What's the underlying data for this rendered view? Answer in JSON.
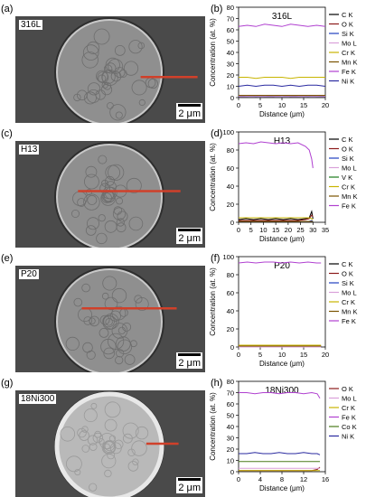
{
  "panels": [
    {
      "sem_letter": "(a)",
      "chart_letter": "(b)",
      "sample": "316L",
      "scale_label": "2 μm",
      "line_frac": [
        0.57,
        0.66,
        0.96
      ]
    },
    {
      "sem_letter": "(c)",
      "chart_letter": "(d)",
      "sample": "H13",
      "scale_label": "2 μm",
      "line_frac": [
        0.47,
        0.33,
        0.87
      ]
    },
    {
      "sem_letter": "(e)",
      "chart_letter": "(f)",
      "sample": "P20",
      "scale_label": "2 μm",
      "line_frac": [
        0.4,
        0.35,
        0.85
      ]
    },
    {
      "sem_letter": "(g)",
      "chart_letter": "(h)",
      "sample": "18Ni300",
      "scale_label": "2 μm",
      "line_frac": [
        0.5,
        0.69,
        0.86
      ]
    }
  ],
  "chart_data": [
    {
      "type": "line",
      "title": "316L",
      "xlabel": "Distance (μm)",
      "ylabel": "Concentration (at. %)",
      "xlim": [
        0,
        20
      ],
      "ylim": [
        0,
        80
      ],
      "xticks": [
        0,
        5,
        10,
        15,
        20
      ],
      "yticks": [
        0,
        10,
        20,
        30,
        40,
        50,
        60,
        70,
        80
      ],
      "legend_position": "right",
      "x": [
        0,
        2,
        4,
        6,
        8,
        10,
        12,
        14,
        16,
        18,
        20
      ],
      "series": [
        {
          "name": "C  K",
          "color": "#000000",
          "values": [
            1,
            2,
            1,
            2,
            1,
            2,
            1,
            2,
            1,
            2,
            1
          ]
        },
        {
          "name": "O  K",
          "color": "#8b1a1a",
          "values": [
            1,
            1,
            2,
            1,
            1,
            2,
            1,
            1,
            2,
            1,
            1
          ]
        },
        {
          "name": "Si K",
          "color": "#1f3fbf",
          "values": [
            1,
            1,
            1,
            1,
            1,
            1,
            1,
            1,
            1,
            1,
            1
          ]
        },
        {
          "name": "Mo L",
          "color": "#d9a0d9",
          "values": [
            1,
            1,
            1,
            1,
            1,
            1,
            1,
            1,
            1,
            1,
            1
          ]
        },
        {
          "name": "Cr K",
          "color": "#c8b400",
          "values": [
            18,
            18,
            17,
            18,
            18,
            18,
            17,
            18,
            18,
            18,
            18
          ]
        },
        {
          "name": "Mn K",
          "color": "#7a5200",
          "values": [
            2,
            2,
            2,
            2,
            2,
            2,
            2,
            2,
            2,
            2,
            2
          ]
        },
        {
          "name": "Fe K",
          "color": "#b040d0",
          "values": [
            63,
            64,
            63,
            65,
            64,
            63,
            65,
            64,
            63,
            64,
            63
          ]
        },
        {
          "name": "Ni K",
          "color": "#2a2aa0",
          "values": [
            10,
            11,
            10,
            11,
            11,
            10,
            11,
            10,
            11,
            11,
            10
          ]
        }
      ]
    },
    {
      "type": "line",
      "title": "H13",
      "xlabel": "Distance (μm)",
      "ylabel": "Concentration (at. %)",
      "xlim": [
        0,
        35
      ],
      "ylim": [
        0,
        100
      ],
      "xticks": [
        0,
        5,
        10,
        15,
        20,
        25,
        30,
        35
      ],
      "yticks": [
        0,
        20,
        40,
        60,
        80,
        100
      ],
      "legend_position": "right",
      "x": [
        0,
        3,
        6,
        9,
        12,
        15,
        18,
        21,
        24,
        27,
        28.5,
        29.5,
        30
      ],
      "series": [
        {
          "name": "C  K",
          "color": "#000000",
          "values": [
            3,
            4,
            3,
            4,
            3,
            4,
            3,
            4,
            3,
            4,
            5,
            12,
            4
          ]
        },
        {
          "name": "O  K",
          "color": "#8b1a1a",
          "values": [
            2,
            2,
            2,
            2,
            2,
            2,
            2,
            2,
            2,
            3,
            4,
            8,
            6
          ]
        },
        {
          "name": "Si K",
          "color": "#1f3fbf",
          "values": [
            1,
            1,
            1,
            1,
            1,
            1,
            1,
            1,
            1,
            1,
            1,
            2,
            1
          ]
        },
        {
          "name": "Mo L",
          "color": "#d9a0d9",
          "values": [
            1,
            1,
            1,
            1,
            1,
            1,
            1,
            1,
            1,
            1,
            1,
            1,
            1
          ]
        },
        {
          "name": "V  K",
          "color": "#1a7a1a",
          "values": [
            1,
            1,
            1,
            1,
            1,
            1,
            1,
            1,
            1,
            1,
            1,
            1,
            1
          ]
        },
        {
          "name": "Cr K",
          "color": "#c8b400",
          "values": [
            5,
            5,
            5,
            5,
            5,
            5,
            5,
            5,
            5,
            5,
            5,
            4,
            3
          ]
        },
        {
          "name": "Mn K",
          "color": "#7a5200",
          "values": [
            1,
            1,
            1,
            1,
            1,
            1,
            1,
            1,
            1,
            1,
            1,
            1,
            1
          ]
        },
        {
          "name": "Fe K",
          "color": "#b040d0",
          "values": [
            87,
            88,
            87,
            89,
            88,
            87,
            88,
            87,
            88,
            84,
            80,
            70,
            60
          ]
        }
      ]
    },
    {
      "type": "line",
      "title": "P20",
      "xlabel": "Distance (μm)",
      "ylabel": "Concentration (at. %)",
      "xlim": [
        0,
        20
      ],
      "ylim": [
        0,
        100
      ],
      "xticks": [
        0,
        5,
        10,
        15,
        20
      ],
      "yticks": [
        0,
        20,
        40,
        60,
        80,
        100
      ],
      "legend_position": "right",
      "x": [
        0,
        2,
        4,
        6,
        8,
        10,
        12,
        14,
        16,
        18,
        19
      ],
      "series": [
        {
          "name": "C  K",
          "color": "#000000",
          "values": [
            1,
            2,
            1,
            2,
            1,
            2,
            1,
            2,
            1,
            2,
            1
          ]
        },
        {
          "name": "O  K",
          "color": "#8b1a1a",
          "values": [
            1,
            1,
            1,
            1,
            1,
            1,
            1,
            1,
            1,
            1,
            1
          ]
        },
        {
          "name": "Si K",
          "color": "#1f3fbf",
          "values": [
            1,
            1,
            1,
            1,
            1,
            1,
            1,
            1,
            1,
            1,
            1
          ]
        },
        {
          "name": "Mo L",
          "color": "#d9a0d9",
          "values": [
            0,
            0,
            0,
            0,
            0,
            0,
            0,
            0,
            0,
            0,
            0
          ]
        },
        {
          "name": "Cr K",
          "color": "#c8b400",
          "values": [
            2,
            2,
            2,
            2,
            2,
            2,
            2,
            2,
            2,
            2,
            2
          ]
        },
        {
          "name": "Mn K",
          "color": "#7a5200",
          "values": [
            1,
            1,
            1,
            1,
            1,
            1,
            1,
            1,
            1,
            1,
            1
          ]
        },
        {
          "name": "Fe K",
          "color": "#b040d0",
          "values": [
            93,
            94,
            93,
            94,
            94,
            93,
            94,
            93,
            94,
            93,
            93
          ]
        }
      ]
    },
    {
      "type": "line",
      "title": "18Ni300",
      "xlabel": "Distance (μm)",
      "ylabel": "Concentration (at. %)",
      "xlim": [
        0,
        16
      ],
      "ylim": [
        0,
        80
      ],
      "xticks": [
        0,
        4,
        8,
        12,
        16
      ],
      "yticks": [
        0,
        10,
        20,
        30,
        40,
        50,
        60,
        70,
        80
      ],
      "legend_position": "right",
      "x": [
        0,
        1.5,
        3,
        4.5,
        6,
        7.5,
        9,
        10.5,
        12,
        13.5,
        14.5,
        15
      ],
      "series": [
        {
          "name": "O  K",
          "color": "#8b1a1a",
          "values": [
            1,
            1,
            1,
            1,
            1,
            1,
            1,
            1,
            1,
            1,
            2,
            4
          ]
        },
        {
          "name": "Mo L",
          "color": "#d9a0d9",
          "values": [
            3,
            3,
            3,
            3,
            3,
            3,
            3,
            3,
            3,
            3,
            3,
            3
          ]
        },
        {
          "name": "Cr K",
          "color": "#c8b400",
          "values": [
            1,
            1,
            1,
            1,
            1,
            1,
            1,
            1,
            1,
            1,
            1,
            1
          ]
        },
        {
          "name": "Fe K",
          "color": "#b040d0",
          "values": [
            70,
            70,
            69,
            70,
            70,
            69,
            70,
            70,
            69,
            70,
            69,
            65
          ]
        },
        {
          "name": "Co K",
          "color": "#4a7a1a",
          "values": [
            9,
            9,
            9,
            9,
            9,
            9,
            9,
            9,
            9,
            9,
            9,
            9
          ]
        },
        {
          "name": "Ni K",
          "color": "#2a2aa0",
          "values": [
            16,
            16,
            17,
            16,
            16,
            17,
            16,
            16,
            17,
            16,
            16,
            15
          ]
        }
      ]
    }
  ]
}
